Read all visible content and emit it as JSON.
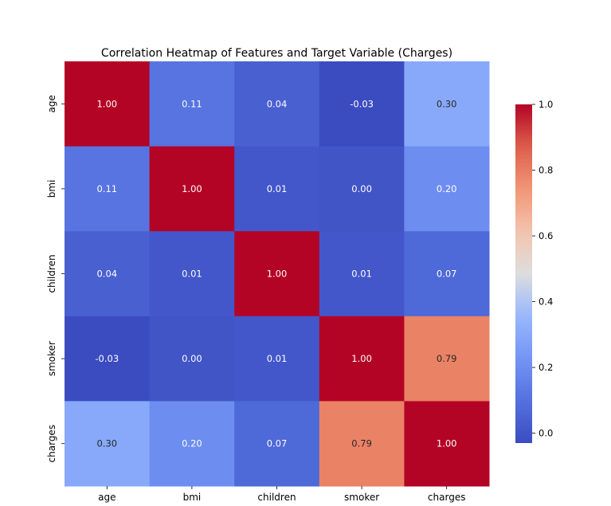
{
  "chart_data": {
    "type": "heatmap",
    "title": "Correlation Heatmap of Features and Target Variable (Charges)",
    "x_labels": [
      "age",
      "bmi",
      "children",
      "smoker",
      "charges"
    ],
    "y_labels": [
      "age",
      "bmi",
      "children",
      "smoker",
      "charges"
    ],
    "values": [
      [
        1.0,
        0.11,
        0.04,
        -0.03,
        0.3
      ],
      [
        0.11,
        1.0,
        0.01,
        0.0,
        0.2
      ],
      [
        0.04,
        0.01,
        1.0,
        0.01,
        0.07
      ],
      [
        -0.03,
        0.0,
        0.01,
        1.0,
        0.79
      ],
      [
        0.3,
        0.2,
        0.07,
        0.79,
        1.0
      ]
    ],
    "value_format": "0.00",
    "colormap": "coolwarm",
    "vmin": -0.03,
    "vmax": 1.0,
    "colorbar": {
      "ticks": [
        0.0,
        0.2,
        0.4,
        0.6,
        0.8,
        1.0
      ],
      "tick_labels": [
        "0.0",
        "0.2",
        "0.4",
        "0.6",
        "0.8",
        "1.0"
      ],
      "placement": "right"
    },
    "annotation_colors": {
      "dark": "#262626",
      "light": "#ffffff"
    },
    "grid": false
  }
}
